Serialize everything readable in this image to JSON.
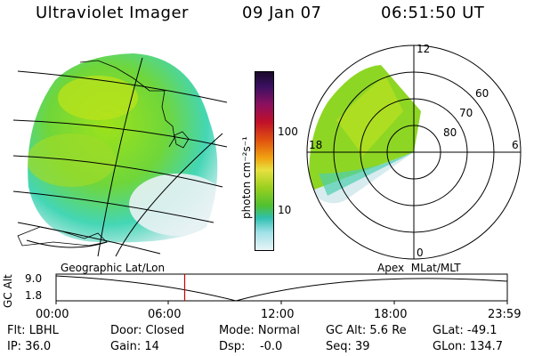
{
  "header": {
    "instrument": "Ultraviolet Imager",
    "date": "09 Jan 07",
    "time": "06:51:50 UT"
  },
  "colorbar": {
    "unit_label": "photon cm⁻²s⁻¹",
    "ticks": [
      "100",
      "10"
    ]
  },
  "polar_plot": {
    "mlt_labels": [
      "12",
      "18",
      "6",
      "0"
    ],
    "lat_labels": [
      "60",
      "70",
      "80"
    ]
  },
  "orbit_panel": {
    "left_title": "Geographic Lat/Lon",
    "right_title": "Apex  MLat/MLT",
    "y_axis_label": "GC Alt",
    "y_ticks": [
      "9.0",
      "1.8"
    ],
    "x_ticks": [
      "00:00",
      "06:00",
      "12:00",
      "18:00",
      "23:59"
    ],
    "current_time_fraction": 0.285
  },
  "status": {
    "row1": [
      {
        "label": "Flt: LBHL"
      },
      {
        "label": "Door: Closed"
      },
      {
        "label": "Mode: Normal"
      },
      {
        "label": "GC Alt: 5.6 Re"
      },
      {
        "label": "GLat: -49.1"
      }
    ],
    "row2": [
      {
        "label": "IP: 36.0"
      },
      {
        "label": "Gain: 14"
      },
      {
        "label": "Dsp:    -0.0"
      },
      {
        "label": "Seq: 39"
      },
      {
        "label": "GLon: 134.7"
      }
    ]
  }
}
